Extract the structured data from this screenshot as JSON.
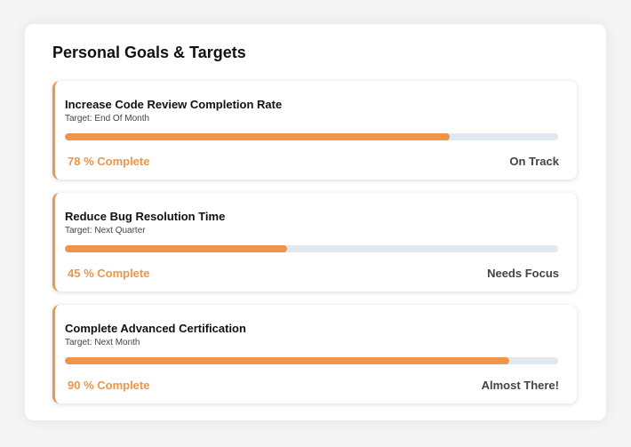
{
  "title": "Personal Goals & Targets",
  "accent_color": "#ef9549",
  "goals": [
    {
      "name": "Increase Code Review Completion Rate",
      "target": "Target: End Of Month",
      "percent": 78,
      "percent_label": "78 % Complete",
      "status": "On Track"
    },
    {
      "name": "Reduce Bug Resolution Time",
      "target": "Target: Next Quarter",
      "percent": 45,
      "percent_label": "45 % Complete",
      "status": "Needs Focus"
    },
    {
      "name": "Complete Advanced Certification",
      "target": "Target: Next Month",
      "percent": 90,
      "percent_label": "90 % Complete",
      "status": "Almost There!"
    }
  ]
}
